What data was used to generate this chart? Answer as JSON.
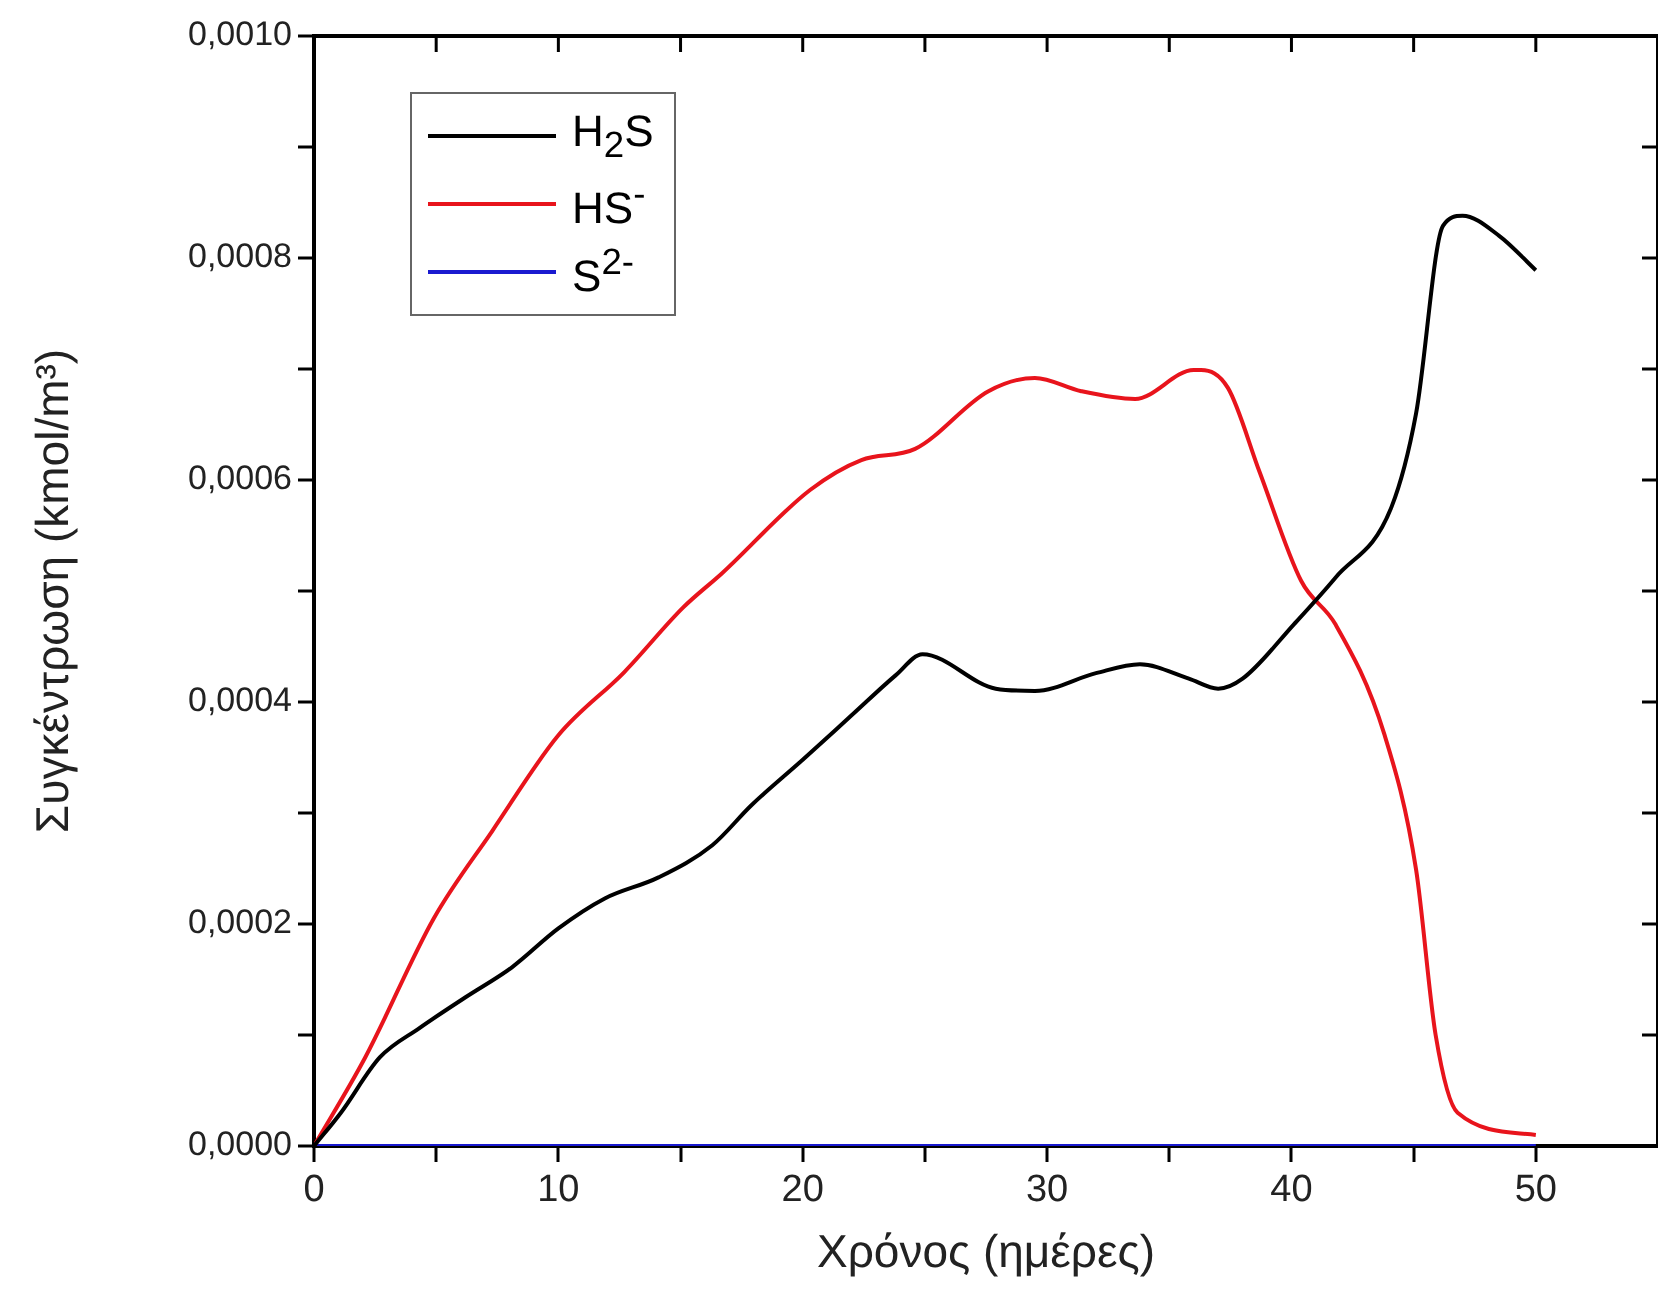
{
  "chart_data": {
    "type": "line",
    "xlabel": "Χρόνος (ημέρες)",
    "ylabel": "Συγκέντρωση (kmol/m³)",
    "xlim": [
      0,
      55
    ],
    "xticks": [
      0,
      {
        "value": 5,
        "label": null
      },
      10,
      {
        "value": 15,
        "label": null
      },
      20,
      {
        "value": 25,
        "label": null
      },
      30,
      {
        "value": 35,
        "label": null
      },
      40,
      {
        "value": 45,
        "label": null
      },
      50
    ],
    "ylim": [
      0,
      0.001
    ],
    "yticks": [
      {
        "value": 0,
        "label": "0,0000"
      },
      {
        "value": 0.0001,
        "label": null
      },
      {
        "value": 0.0002,
        "label": "0,0002"
      },
      {
        "value": 0.0003,
        "label": null
      },
      {
        "value": 0.0004,
        "label": "0,0004"
      },
      {
        "value": 0.0005,
        "label": null
      },
      {
        "value": 0.0006,
        "label": "0,0006"
      },
      {
        "value": 0.0007,
        "label": null
      },
      {
        "value": 0.0008,
        "label": "0,0008"
      },
      {
        "value": 0.0009,
        "label": null
      },
      {
        "value": 0.001,
        "label": "0,0010"
      }
    ],
    "grid": false,
    "legend": "top left",
    "marker": "none",
    "line_style": "solid",
    "series": [
      {
        "name": "H$_{2}$S",
        "color": "#000000",
        "x": [
          0,
          1.1,
          2.7,
          4.3,
          6.2,
          8.1,
          10,
          11.9,
          14.1,
          16.3,
          17.9,
          20,
          22,
          23.8,
          24.9,
          27.9,
          29.5,
          32,
          33.8,
          35.8,
          37,
          38,
          40.1,
          41.8,
          44.1,
          45.1,
          46.2,
          47,
          48.5,
          50
        ],
        "values": [
          0,
          3e-05,
          8e-05,
          0.000106,
          0.000134,
          0.000161,
          0.000196,
          0.000223,
          0.000242,
          0.000271,
          0.000307,
          0.000348,
          0.000388,
          0.000424,
          0.000443,
          0.000412,
          0.00041,
          0.000426,
          0.000434,
          0.000421,
          0.000412,
          0.000421,
          0.00047,
          0.000512,
          0.000576,
          0.00066,
          0.000829,
          0.000838,
          0.00082,
          0.000789
        ]
      },
      {
        "name": "HS$^{-}$",
        "color": "#e8141c",
        "x": [
          0,
          2.1,
          4.9,
          7.3,
          10,
          12.7,
          15.1,
          16.7,
          20.3,
          22.4,
          24.6,
          27.6,
          29.5,
          31.4,
          33.6,
          36,
          36.3,
          37.4,
          38.7,
          40.4,
          41.8,
          43.8,
          45.1,
          45.9,
          46.8,
          50
        ],
        "values": [
          0,
          8e-05,
          0.000205,
          0.000284,
          0.00037,
          0.000427,
          0.000485,
          0.000516,
          0.000591,
          0.000618,
          0.000628,
          0.00068,
          0.000692,
          0.00068,
          0.000673,
          0.000699,
          0.000699,
          0.000683,
          0.000607,
          0.000509,
          0.00047,
          0.000371,
          0.000249,
          0.0001,
          3e-05,
          1e-05
        ]
      },
      {
        "name": "S$^{2-}$",
        "color": "#1a1ad0",
        "x": [
          0,
          50
        ],
        "values": [
          0,
          0
        ]
      }
    ]
  }
}
